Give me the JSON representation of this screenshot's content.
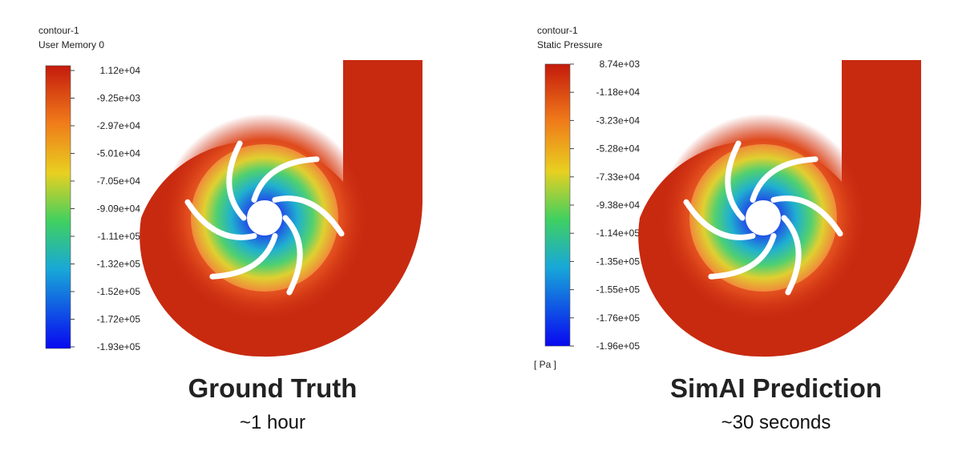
{
  "panels": [
    {
      "name": "contour-1",
      "variable": "User Memory 0",
      "ticks": [
        "1.12e+04",
        "-9.25e+03",
        "-2.97e+04",
        "-5.01e+04",
        "-7.05e+04",
        "-9.09e+04",
        "-1.11e+05",
        "-1.32e+05",
        "-1.52e+05",
        "-1.72e+05",
        "-1.93e+05"
      ],
      "caption": "Ground Truth",
      "duration": "~1 hour"
    },
    {
      "name": "contour-1",
      "variable": "Static Pressure",
      "ticks": [
        "8.74e+03",
        "-1.18e+04",
        "-3.23e+04",
        "-5.28e+04",
        "-7.33e+04",
        "-9.38e+04",
        "-1.14e+05",
        "-1.35e+05",
        "-1.55e+05",
        "-1.76e+05",
        "-1.96e+05"
      ],
      "unit": "[ Pa ]",
      "caption": "SimAI Prediction",
      "duration": "~30 seconds"
    }
  ]
}
